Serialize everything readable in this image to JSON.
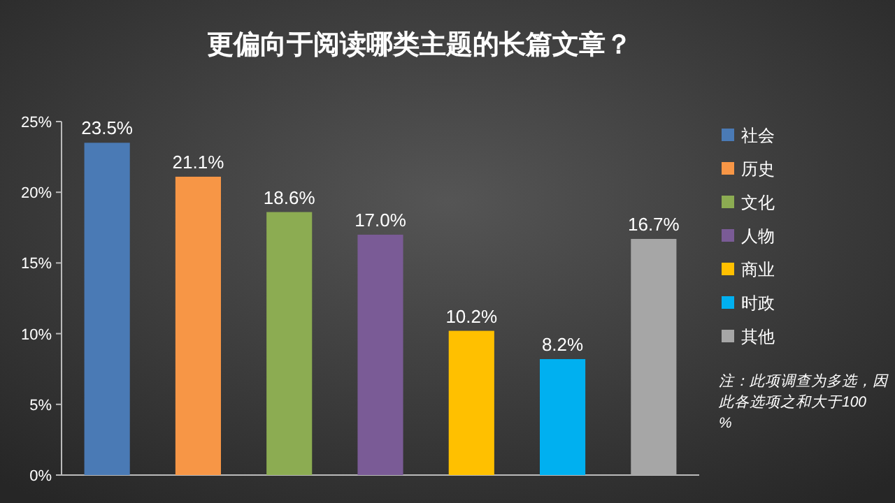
{
  "chart_data": {
    "type": "bar",
    "title": "更偏向于阅读哪类主题的长篇文章？",
    "categories": [
      null,
      null,
      null,
      null,
      null,
      null,
      null
    ],
    "series": [
      {
        "name": "社会",
        "color": "#4a7ab5",
        "values": [
          23.5,
          null,
          null,
          null,
          null,
          null,
          null
        ],
        "value_labels": [
          "23.5%",
          null,
          null,
          null,
          null,
          null,
          null
        ]
      },
      {
        "name": "历史",
        "color": "#f79646",
        "values": [
          null,
          21.1,
          null,
          null,
          null,
          null,
          null
        ],
        "value_labels": [
          null,
          "21.1%",
          null,
          null,
          null,
          null,
          null
        ]
      },
      {
        "name": "文化",
        "color": "#8cac52",
        "values": [
          null,
          null,
          18.6,
          null,
          null,
          null,
          null
        ],
        "value_labels": [
          null,
          null,
          "18.6%",
          null,
          null,
          null,
          null
        ]
      },
      {
        "name": "人物",
        "color": "#7a5b96",
        "values": [
          null,
          null,
          null,
          17.0,
          null,
          null,
          null
        ],
        "value_labels": [
          null,
          null,
          null,
          "17.0%",
          null,
          null,
          null
        ]
      },
      {
        "name": "商业",
        "color": "#ffc000",
        "values": [
          null,
          null,
          null,
          null,
          10.2,
          null,
          null
        ],
        "value_labels": [
          null,
          null,
          null,
          null,
          "10.2%",
          null,
          null
        ]
      },
      {
        "name": "时政",
        "color": "#00b0f0",
        "values": [
          null,
          null,
          null,
          null,
          null,
          8.2,
          null
        ],
        "value_labels": [
          null,
          null,
          null,
          null,
          null,
          "8.2%",
          null
        ]
      },
      {
        "name": "其他",
        "color": "#a6a6a6",
        "values": [
          null,
          null,
          null,
          null,
          null,
          null,
          16.7
        ],
        "value_labels": [
          null,
          null,
          null,
          null,
          null,
          null,
          "16.7%"
        ]
      }
    ],
    "ylim": [
      0,
      25
    ],
    "yticks": [
      {
        "value": 0,
        "label": "0%"
      },
      {
        "value": 5,
        "label": "5%"
      },
      {
        "value": 10,
        "label": "10%"
      },
      {
        "value": 15,
        "label": "15%"
      },
      {
        "value": 20,
        "label": "20%"
      },
      {
        "value": 25,
        "label": "25%"
      }
    ],
    "legend": "right",
    "annotations": [
      "注：此项调查为多选，因此各选项之和大于100%"
    ]
  }
}
